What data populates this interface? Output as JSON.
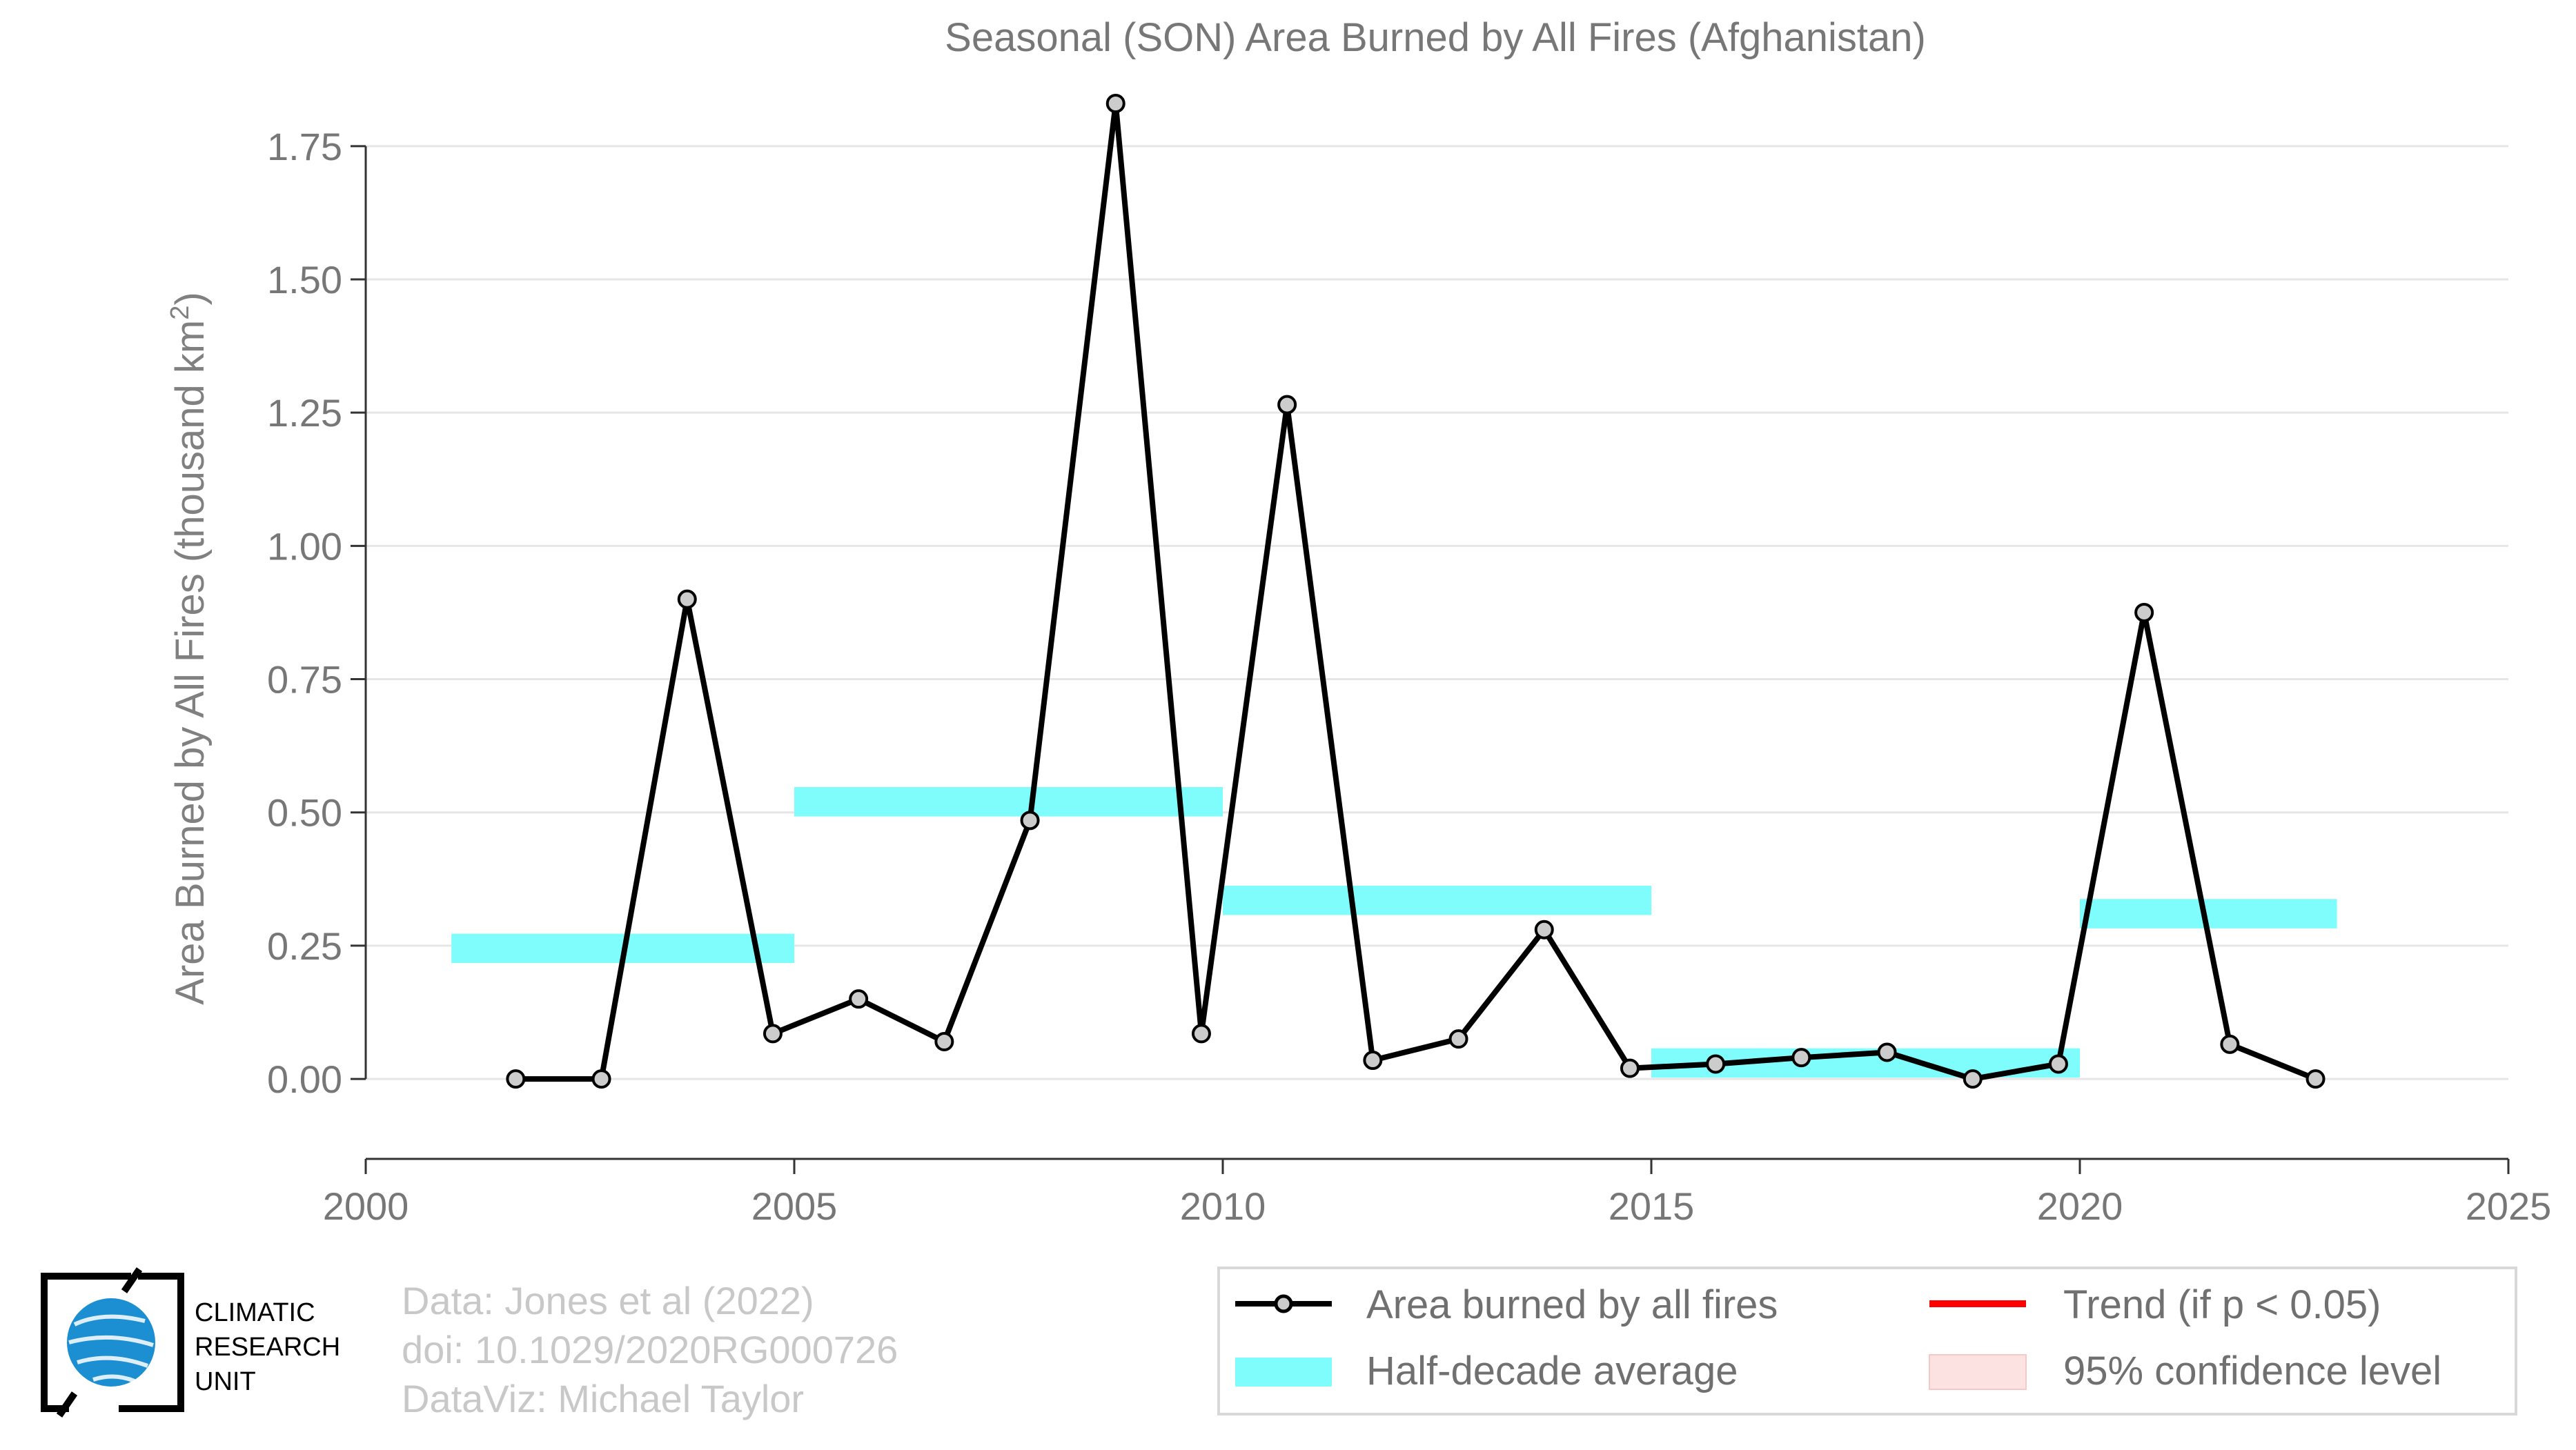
{
  "chart_data": {
    "type": "line",
    "title": "Seasonal (SON) Area Burned by All Fires (Afghanistan)",
    "xlabel": "",
    "ylabel": "Area Burned by All Fires (thousand km",
    "ylabel_sup": "2",
    "ylabel_end": ")",
    "xlim": [
      2000,
      2025
    ],
    "ylim": [
      -0.15,
      1.83
    ],
    "x_ticks": [
      2000,
      2005,
      2010,
      2015,
      2020,
      2025
    ],
    "y_ticks": [
      0.0,
      0.25,
      0.5,
      0.75,
      1.0,
      1.25,
      1.5,
      1.75
    ],
    "y_tick_labels": [
      "0.00",
      "0.25",
      "0.50",
      "0.75",
      "1.00",
      "1.25",
      "1.50",
      "1.75"
    ],
    "grid": "horizontal",
    "legend_position": "bottom-right",
    "series": [
      {
        "name": "Area burned by all fires",
        "color": "#000000",
        "x": [
          2001.75,
          2002.75,
          2003.75,
          2004.75,
          2005.75,
          2006.75,
          2007.75,
          2008.75,
          2009.75,
          2010.75,
          2011.75,
          2012.75,
          2013.75,
          2014.75,
          2015.75,
          2016.75,
          2017.75,
          2018.75,
          2019.75,
          2020.75,
          2021.75,
          2022.75
        ],
        "values": [
          0.0,
          0.0,
          0.9,
          0.085,
          0.15,
          0.07,
          0.485,
          1.83,
          0.085,
          1.265,
          0.035,
          0.075,
          0.28,
          0.02,
          0.028,
          0.04,
          0.05,
          0.0,
          0.028,
          0.875,
          0.065,
          0.0
        ]
      }
    ],
    "half_decade_averages": {
      "name": "Half-decade average",
      "color": "#7ffcfc",
      "periods": [
        {
          "start": 2001,
          "end": 2005,
          "value": 0.245
        },
        {
          "start": 2005,
          "end": 2010,
          "value": 0.52
        },
        {
          "start": 2010,
          "end": 2015,
          "value": 0.335
        },
        {
          "start": 2015,
          "end": 2020,
          "value": 0.03
        },
        {
          "start": 2020,
          "end": 2023,
          "value": 0.31
        }
      ]
    },
    "legend": [
      {
        "label": "Area burned by all fires",
        "kind": "line-marker",
        "color": "#000000"
      },
      {
        "label": "Trend (if p < 0.05)",
        "kind": "line",
        "color": "#ff0000"
      },
      {
        "label": "Half-decade average",
        "kind": "band",
        "color": "#7ffcfc"
      },
      {
        "label": "95% confidence level",
        "kind": "band",
        "color": "#fde2e2"
      }
    ]
  },
  "credits": {
    "line1": "Data: Jones et al (2022)",
    "line2": "doi: 10.1029/2020RG000726",
    "line3": "DataViz: Michael Taylor"
  },
  "logo": {
    "line1": "CLIMATIC",
    "line2": "RESEARCH",
    "line3": "UNIT",
    "icon": "globe-icon",
    "color": "#1b8fd1"
  }
}
